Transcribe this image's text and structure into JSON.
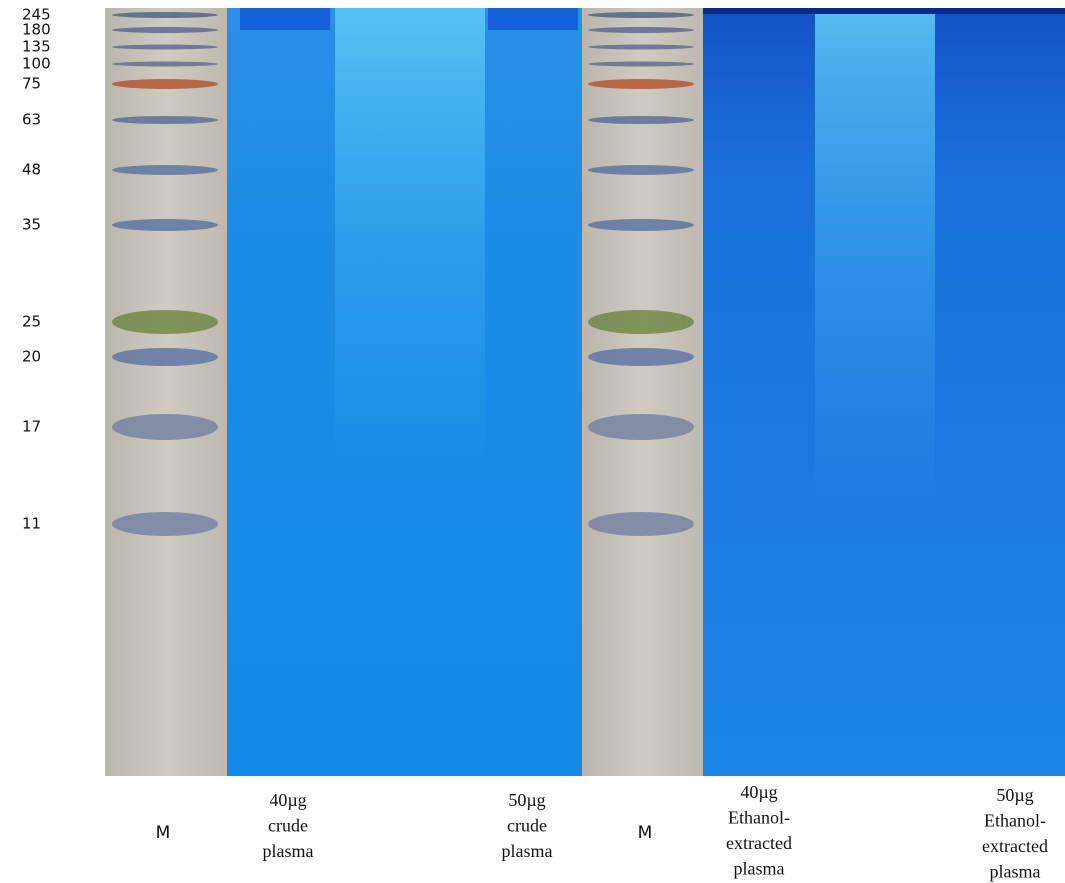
{
  "markers": [
    245,
    180,
    135,
    100,
    75,
    63,
    48,
    35,
    25,
    20,
    17,
    11
  ],
  "lanes": [
    {
      "lines": [
        "M"
      ]
    },
    {
      "lines": [
        "40µg",
        "crude",
        "plasma"
      ]
    },
    {
      "lines": [
        "50µg",
        "crude",
        "plasma"
      ]
    },
    {
      "lines": [
        "M"
      ]
    },
    {
      "lines": [
        "40µg",
        "Ethanol-",
        "extracted",
        "plasma"
      ]
    },
    {
      "lines": [
        "50µg",
        "Ethanol-",
        "extracted",
        "plasma"
      ]
    }
  ]
}
